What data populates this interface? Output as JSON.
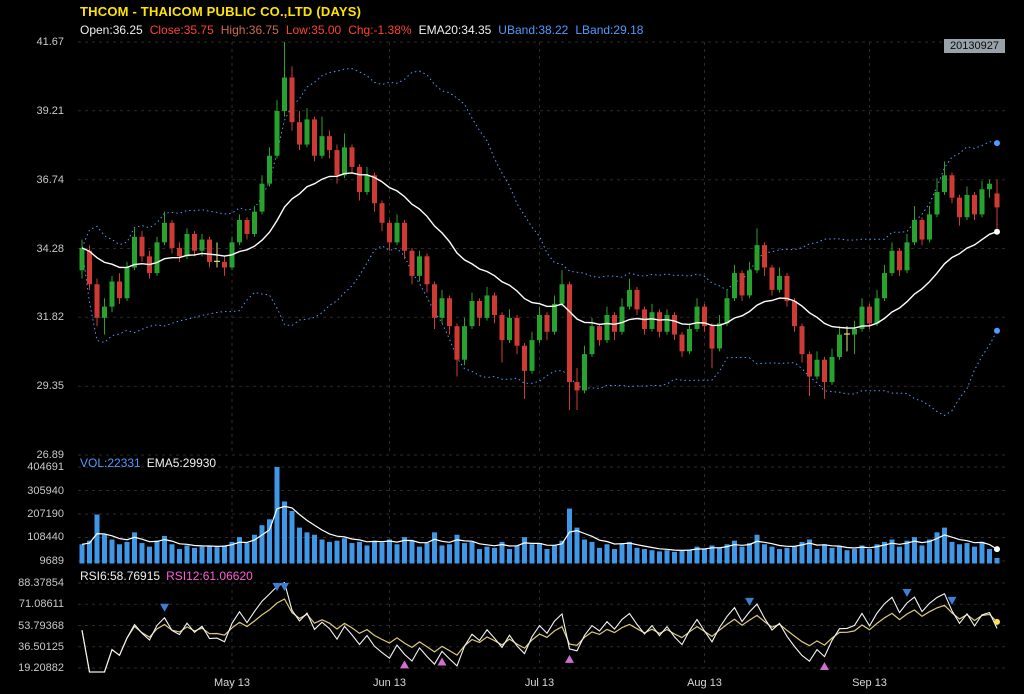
{
  "header": {
    "title": "THCOM - THAICOM PUBLIC CO.,LTD (DAYS)",
    "title_color": "#ffe400",
    "date": "20130927",
    "segments": [
      {
        "text": "Open:36.25",
        "color": "#f0f0f0"
      },
      {
        "text": "Close:35.75",
        "color": "#ff4136"
      },
      {
        "text": "High:36.75",
        "color": "#c96a50"
      },
      {
        "text": "Low:35.00",
        "color": "#ff4136"
      },
      {
        "text": "Chg:-1.38%",
        "color": "#ff4136"
      },
      {
        "text": "EMA20:34.35",
        "color": "#f0f0f0"
      },
      {
        "text": "UBand:38.22",
        "color": "#4f9bff"
      },
      {
        "text": "LBand:29.18",
        "color": "#4f9bff"
      }
    ]
  },
  "volume_panel": {
    "segments": [
      {
        "text": "VOL:22331",
        "color": "#4f9bff"
      },
      {
        "text": "EMA5:29930",
        "color": "#f0f0f0"
      }
    ]
  },
  "rsi_panel": {
    "segments": [
      {
        "text": "RSI6:58.76915",
        "color": "#f0f0f0"
      },
      {
        "text": "RSI12:61.06620",
        "color": "#ff5fd7"
      }
    ]
  },
  "chart_data": {
    "type": "candlestick",
    "title": "THCOM - THAICOM PUBLIC CO.,LTD (DAYS)",
    "date_shown": "20130927",
    "x_labels": [
      {
        "label": "May 13",
        "index": 20
      },
      {
        "label": "Jun 13",
        "index": 41
      },
      {
        "label": "Jul 13",
        "index": 61
      },
      {
        "label": "Aug 13",
        "index": 83
      },
      {
        "label": "Sep 13",
        "index": 105
      }
    ],
    "main": {
      "ylim": [
        26.89,
        41.67
      ],
      "y_ticks": [
        41.67,
        39.21,
        36.74,
        34.28,
        31.82,
        29.35,
        26.89
      ],
      "overlays": [
        "EMA20",
        "UpperBollingerBand",
        "LowerBollingerBand"
      ],
      "ema20_current": 34.35,
      "uband_current": 38.22,
      "lband_current": 29.18
    },
    "volume": {
      "y_ticks": [
        404691,
        305940,
        207190,
        108440,
        9689
      ],
      "current": 22331,
      "ema5_current": 29930
    },
    "rsi": {
      "y_ticks": [
        88.37854,
        71.08611,
        53.79368,
        36.50125,
        19.20882
      ],
      "rsi6_current": 58.76915,
      "rsi12_current": 61.0662,
      "sell_markers": [
        11,
        26,
        27,
        89,
        110,
        116
      ],
      "buy_markers": [
        43,
        48,
        65,
        99
      ]
    },
    "colors": {
      "background": "#000000",
      "up": "#27a22e",
      "down": "#cf3b34",
      "doji": "#e3df7a",
      "ema": "#ffffff",
      "band": "#4f9bff",
      "volume_bar": "#3f97e8",
      "rsi6": "#f5f5f5",
      "rsi12": "#ddca7e",
      "sell_marker": "#3b7fd4",
      "buy_marker": "#cf6ed3",
      "grid": "#2b2b2b",
      "axis_text": "#c8c8c8"
    },
    "candles_format": [
      "open",
      "high",
      "low",
      "close",
      "volume"
    ],
    "candles": [
      [
        33.5,
        34.6,
        33.2,
        34.3,
        80000
      ],
      [
        34.2,
        34.4,
        32.8,
        33.0,
        95000
      ],
      [
        33.0,
        33.2,
        31.5,
        31.8,
        205000
      ],
      [
        31.8,
        32.5,
        31.2,
        32.2,
        120000
      ],
      [
        32.2,
        33.3,
        32.0,
        33.1,
        100000
      ],
      [
        33.1,
        33.4,
        32.3,
        32.5,
        80000
      ],
      [
        32.5,
        33.8,
        32.4,
        33.6,
        90000
      ],
      [
        33.6,
        35.0,
        33.5,
        34.7,
        130000
      ],
      [
        34.7,
        34.9,
        33.8,
        34.0,
        85000
      ],
      [
        34.0,
        34.2,
        33.2,
        33.4,
        70000
      ],
      [
        33.4,
        34.7,
        33.3,
        34.5,
        95000
      ],
      [
        34.5,
        35.6,
        34.4,
        35.2,
        115000
      ],
      [
        35.2,
        35.3,
        34.1,
        34.3,
        80000
      ],
      [
        34.3,
        34.5,
        33.8,
        34.0,
        60000
      ],
      [
        34.0,
        35.0,
        33.9,
        34.8,
        75000
      ],
      [
        34.8,
        34.9,
        34.0,
        34.2,
        65000
      ],
      [
        34.2,
        34.8,
        34.0,
        34.6,
        70000
      ],
      [
        34.6,
        34.7,
        33.6,
        33.8,
        72000
      ],
      [
        33.8,
        34.5,
        33.6,
        33.82,
        68000
      ],
      [
        33.8,
        34.0,
        33.3,
        33.6,
        75000
      ],
      [
        33.6,
        34.7,
        33.5,
        34.5,
        90000
      ],
      [
        34.5,
        35.5,
        34.4,
        35.3,
        110000
      ],
      [
        35.3,
        35.4,
        34.6,
        34.8,
        85000
      ],
      [
        34.8,
        35.8,
        34.7,
        35.6,
        120000
      ],
      [
        35.6,
        36.9,
        35.5,
        36.6,
        160000
      ],
      [
        36.6,
        37.9,
        36.5,
        37.6,
        185000
      ],
      [
        37.6,
        39.6,
        37.5,
        39.2,
        404691
      ],
      [
        39.2,
        41.67,
        39.0,
        40.4,
        260000
      ],
      [
        40.4,
        40.8,
        38.5,
        38.8,
        220000
      ],
      [
        38.8,
        39.2,
        37.8,
        38.0,
        150000
      ],
      [
        38.0,
        39.3,
        37.9,
        38.9,
        130000
      ],
      [
        38.9,
        39.0,
        37.4,
        37.6,
        120000
      ],
      [
        37.6,
        39.0,
        37.5,
        38.3,
        100000
      ],
      [
        38.3,
        38.5,
        37.5,
        37.8,
        90000
      ],
      [
        37.8,
        38.0,
        36.6,
        36.9,
        95000
      ],
      [
        36.9,
        38.4,
        36.8,
        37.9,
        105000
      ],
      [
        37.9,
        38.0,
        37.0,
        37.2,
        85000
      ],
      [
        37.2,
        37.3,
        36.0,
        36.3,
        90000
      ],
      [
        36.3,
        37.2,
        36.2,
        36.9,
        75000
      ],
      [
        36.9,
        37.0,
        35.6,
        35.9,
        95000
      ],
      [
        35.9,
        36.0,
        34.9,
        35.2,
        88000
      ],
      [
        35.2,
        35.3,
        34.2,
        34.5,
        100000
      ],
      [
        34.5,
        35.5,
        34.4,
        35.2,
        80000
      ],
      [
        35.2,
        35.3,
        33.9,
        34.2,
        110000
      ],
      [
        34.2,
        34.3,
        33.0,
        33.3,
        95000
      ],
      [
        33.3,
        34.2,
        33.1,
        34.0,
        70000
      ],
      [
        34.0,
        34.1,
        32.7,
        33.0,
        85000
      ],
      [
        33.0,
        33.1,
        31.4,
        31.8,
        130000
      ],
      [
        31.8,
        32.8,
        31.6,
        32.5,
        75000
      ],
      [
        32.5,
        32.6,
        31.2,
        31.5,
        80000
      ],
      [
        31.5,
        31.6,
        29.7,
        30.3,
        120000
      ],
      [
        30.3,
        31.8,
        30.1,
        31.5,
        85000
      ],
      [
        31.5,
        32.7,
        31.4,
        32.4,
        90000
      ],
      [
        32.4,
        32.5,
        31.5,
        31.8,
        60000
      ],
      [
        31.8,
        32.9,
        31.7,
        32.6,
        70000
      ],
      [
        32.6,
        32.7,
        31.6,
        31.9,
        65000
      ],
      [
        31.9,
        32.0,
        30.2,
        31.0,
        90000
      ],
      [
        31.0,
        32.1,
        30.9,
        31.8,
        60000
      ],
      [
        31.8,
        31.9,
        30.5,
        30.8,
        75000
      ],
      [
        30.8,
        30.9,
        28.9,
        29.9,
        110000
      ],
      [
        29.9,
        31.3,
        29.8,
        31.0,
        80000
      ],
      [
        31.0,
        32.2,
        30.9,
        31.9,
        85000
      ],
      [
        31.9,
        32.0,
        31.0,
        31.3,
        60000
      ],
      [
        31.3,
        32.6,
        31.2,
        32.3,
        75000
      ],
      [
        32.3,
        33.5,
        32.2,
        33.0,
        95000
      ],
      [
        33.0,
        33.1,
        28.5,
        29.5,
        230000
      ],
      [
        29.5,
        30.0,
        28.5,
        29.2,
        150000
      ],
      [
        29.2,
        30.8,
        29.1,
        30.5,
        100000
      ],
      [
        30.5,
        31.8,
        30.4,
        31.5,
        90000
      ],
      [
        31.5,
        31.6,
        30.8,
        31.0,
        65000
      ],
      [
        31.0,
        32.2,
        30.9,
        31.9,
        80000
      ],
      [
        31.9,
        32.0,
        31.0,
        31.3,
        60000
      ],
      [
        31.3,
        32.5,
        31.2,
        32.2,
        85000
      ],
      [
        32.2,
        33.2,
        32.1,
        32.8,
        90000
      ],
      [
        32.8,
        32.9,
        31.9,
        32.1,
        65000
      ],
      [
        32.1,
        32.2,
        31.2,
        31.4,
        60000
      ],
      [
        31.4,
        32.3,
        31.3,
        32.0,
        55000
      ],
      [
        32.0,
        32.1,
        31.1,
        31.3,
        50000
      ],
      [
        31.3,
        32.1,
        31.2,
        31.9,
        55000
      ],
      [
        31.9,
        32.0,
        31.0,
        31.2,
        48000
      ],
      [
        31.2,
        31.3,
        30.4,
        30.6,
        52000
      ],
      [
        30.6,
        31.6,
        30.5,
        31.4,
        58000
      ],
      [
        31.4,
        32.5,
        31.3,
        32.2,
        70000
      ],
      [
        32.2,
        32.3,
        31.3,
        31.5,
        60000
      ],
      [
        31.5,
        31.6,
        30.0,
        30.7,
        75000
      ],
      [
        30.7,
        31.9,
        30.6,
        31.6,
        65000
      ],
      [
        31.6,
        32.8,
        31.5,
        32.5,
        80000
      ],
      [
        32.5,
        33.7,
        32.4,
        33.4,
        95000
      ],
      [
        33.4,
        33.5,
        32.4,
        32.6,
        70000
      ],
      [
        32.6,
        33.8,
        32.5,
        33.5,
        85000
      ],
      [
        33.5,
        35.0,
        33.4,
        34.4,
        120000
      ],
      [
        34.4,
        34.5,
        33.3,
        33.6,
        80000
      ],
      [
        33.6,
        33.7,
        32.6,
        32.8,
        70000
      ],
      [
        32.8,
        33.6,
        32.7,
        33.3,
        60000
      ],
      [
        33.3,
        33.4,
        32.2,
        32.4,
        65000
      ],
      [
        32.4,
        32.5,
        31.3,
        31.5,
        70000
      ],
      [
        31.5,
        31.6,
        30.2,
        30.5,
        90000
      ],
      [
        30.5,
        30.6,
        29.0,
        29.7,
        100000
      ],
      [
        29.7,
        30.6,
        29.6,
        30.3,
        60000
      ],
      [
        30.3,
        30.4,
        28.9,
        29.5,
        80000
      ],
      [
        29.5,
        30.7,
        29.4,
        30.4,
        65000
      ],
      [
        30.4,
        31.5,
        30.3,
        31.2,
        70000
      ],
      [
        31.2,
        31.5,
        30.6,
        31.22,
        55000
      ],
      [
        31.2,
        31.7,
        30.5,
        31.4,
        60000
      ],
      [
        31.4,
        32.5,
        31.3,
        32.2,
        75000
      ],
      [
        32.2,
        32.3,
        31.4,
        31.6,
        60000
      ],
      [
        31.6,
        32.8,
        31.5,
        32.5,
        80000
      ],
      [
        32.5,
        33.7,
        32.4,
        33.4,
        90000
      ],
      [
        33.4,
        34.5,
        33.3,
        34.2,
        100000
      ],
      [
        34.2,
        34.3,
        33.3,
        33.5,
        70000
      ],
      [
        33.5,
        34.8,
        33.4,
        34.5,
        95000
      ],
      [
        34.5,
        35.8,
        34.4,
        35.3,
        110000
      ],
      [
        35.3,
        35.4,
        34.4,
        34.6,
        75000
      ],
      [
        34.6,
        35.8,
        34.5,
        35.5,
        100000
      ],
      [
        35.5,
        36.8,
        35.4,
        36.3,
        130000
      ],
      [
        36.3,
        37.4,
        36.2,
        36.9,
        150000
      ],
      [
        36.9,
        37.0,
        35.9,
        36.1,
        90000
      ],
      [
        36.1,
        36.2,
        35.1,
        35.4,
        80000
      ],
      [
        35.4,
        36.5,
        35.3,
        36.2,
        85000
      ],
      [
        36.2,
        36.3,
        35.3,
        35.5,
        70000
      ],
      [
        35.5,
        36.7,
        35.4,
        36.4,
        90000
      ],
      [
        36.4,
        36.75,
        36.1,
        36.6,
        60000
      ],
      [
        36.25,
        36.75,
        35.0,
        35.75,
        22331
      ]
    ]
  }
}
